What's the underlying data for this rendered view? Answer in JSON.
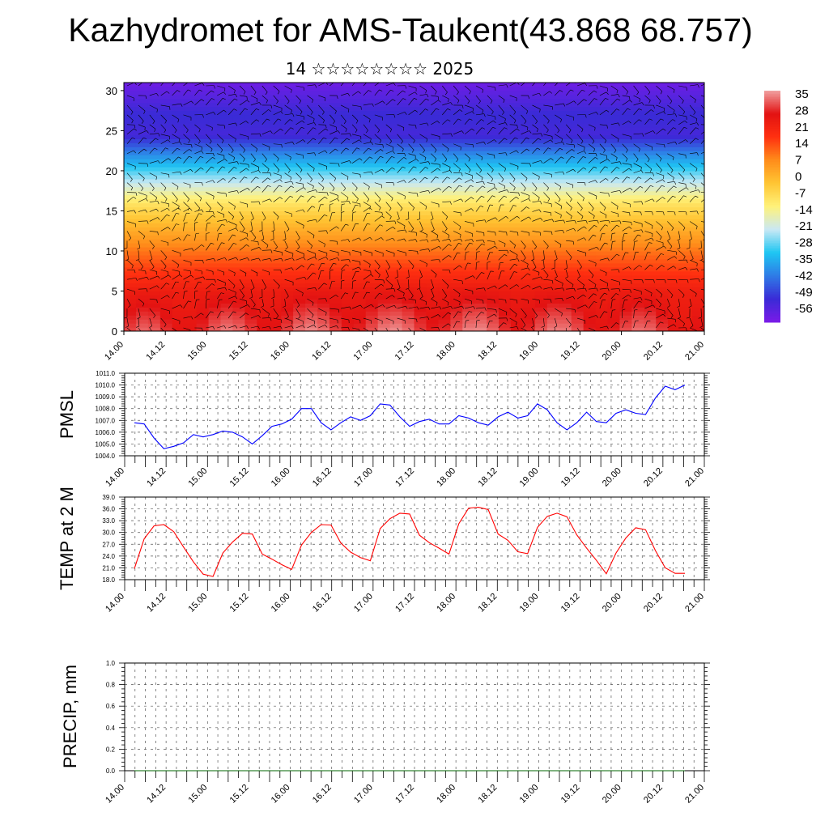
{
  "header": {
    "title": "Kazhydromet for AMS-Taukent(43.868 68.757)",
    "subtitle": "14 ☆☆☆☆☆☆☆☆ 2025"
  },
  "chart_data": [
    {
      "type": "heatmap",
      "title": "",
      "x_tick_labels": [
        "14.00",
        "14.12",
        "15.00",
        "15.12",
        "16.00",
        "16.12",
        "17.00",
        "17.12",
        "18.00",
        "18.12",
        "19.00",
        "19.12",
        "20.00",
        "20.12",
        "21.00"
      ],
      "y_ticks": [
        0,
        5,
        10,
        15,
        20,
        25,
        30
      ],
      "ylim": [
        0,
        31
      ],
      "colorbar_labels": [
        "35",
        "28",
        "21",
        "14",
        "7",
        "0",
        "-7",
        "-14",
        "-21",
        "-28",
        "-35",
        "-42",
        "-49",
        "-56"
      ],
      "colorbar_range": [
        -60,
        38
      ],
      "colors": {
        "stops": [
          "#7a1ae8",
          "#3a2bd6",
          "#2f7be6",
          "#1ec6f2",
          "#c9e8f4",
          "#fff27a",
          "#ffc533",
          "#ff8c1a",
          "#ff3010",
          "#e21212",
          "#f0a0a0"
        ]
      },
      "profile_temperature_by_level": [
        {
          "level": 0,
          "temp": 30
        },
        {
          "level": 5,
          "temp": 24
        },
        {
          "level": 10,
          "temp": 11
        },
        {
          "level": 13,
          "temp": 2
        },
        {
          "level": 16,
          "temp": -8
        },
        {
          "level": 18,
          "temp": -18
        },
        {
          "level": 20,
          "temp": -28
        },
        {
          "level": 22,
          "temp": -38
        },
        {
          "level": 24.5,
          "temp": -52
        },
        {
          "level": 27,
          "temp": -50
        },
        {
          "level": 31,
          "temp": -58
        }
      ],
      "overlay": "wind barbs"
    },
    {
      "type": "line",
      "ylabel": "PMSL",
      "ylim": [
        1004.0,
        1011.0
      ],
      "y_tick_labels": [
        "1004.0",
        "1005.0",
        "1006.0",
        "1007.0",
        "1008.0",
        "1009.0",
        "1010.0",
        "1011.0"
      ],
      "x_tick_labels": [
        "14.00",
        "14.12",
        "15.00",
        "15.12",
        "16.00",
        "16.12",
        "17.00",
        "17.12",
        "18.00",
        "18.12",
        "19.00",
        "19.12",
        "20.00",
        "20.12",
        "21.00"
      ],
      "grid": true,
      "series": [
        {
          "color": "#0000ff",
          "values": [
            1006.8,
            1006.7,
            1005.5,
            1004.6,
            1004.8,
            1005.1,
            1005.8,
            1005.6,
            1005.8,
            1006.1,
            1006.0,
            1005.6,
            1005.0,
            1005.7,
            1006.5,
            1006.7,
            1007.1,
            1008.0,
            1008.0,
            1006.8,
            1006.2,
            1006.8,
            1007.3,
            1007.0,
            1007.4,
            1008.4,
            1008.3,
            1007.3,
            1006.5,
            1006.9,
            1007.1,
            1006.7,
            1006.7,
            1007.4,
            1007.2,
            1006.8,
            1006.6,
            1007.3,
            1007.7,
            1007.2,
            1007.4,
            1008.4,
            1007.9,
            1006.8,
            1006.2,
            1006.8,
            1007.7,
            1006.9,
            1006.8,
            1007.6,
            1007.9,
            1007.6,
            1007.5,
            1008.9,
            1009.9,
            1009.6,
            1010.0
          ]
        }
      ]
    },
    {
      "type": "line",
      "ylabel": "TEMP at 2 M",
      "ylim": [
        18.0,
        39.0
      ],
      "y_tick_labels": [
        "18.0",
        "21.0",
        "24.0",
        "27.0",
        "30.0",
        "33.0",
        "36.0",
        "39.0"
      ],
      "x_tick_labels": [
        "14.00",
        "14.12",
        "15.00",
        "15.12",
        "16.00",
        "16.12",
        "17.00",
        "17.12",
        "18.00",
        "18.12",
        "19.00",
        "19.12",
        "20.00",
        "20.12",
        "21.00"
      ],
      "grid": true,
      "series": [
        {
          "color": "#ff0000",
          "values": [
            20.8,
            28.4,
            31.7,
            32.0,
            30.2,
            26.3,
            22.5,
            19.4,
            18.8,
            24.8,
            27.6,
            29.8,
            29.6,
            24.5,
            23.2,
            21.8,
            20.6,
            26.8,
            30.0,
            32.0,
            31.9,
            27.3,
            25.0,
            23.6,
            22.8,
            31.0,
            33.5,
            34.9,
            34.7,
            29.3,
            27.4,
            26.0,
            24.5,
            32.2,
            36.2,
            36.4,
            35.8,
            29.6,
            28.0,
            25.1,
            24.6,
            31.3,
            34.1,
            34.9,
            34.0,
            29.4,
            26.0,
            22.9,
            19.5,
            24.8,
            28.6,
            31.2,
            30.7,
            25.4,
            21.0,
            19.6,
            19.6
          ]
        }
      ]
    },
    {
      "type": "line",
      "ylabel": "PRECIP, mm",
      "ylim": [
        0.0,
        1.0
      ],
      "y_tick_labels": [
        "0.0",
        "0.2",
        "0.4",
        "0.6",
        "0.8",
        "1.0"
      ],
      "x_tick_labels": [
        "14.00",
        "14.12",
        "15.00",
        "15.12",
        "16.00",
        "16.12",
        "17.00",
        "17.12",
        "18.00",
        "18.12",
        "19.00",
        "19.12",
        "20.00",
        "20.12",
        "21.00"
      ],
      "grid": true,
      "series": [
        {
          "color": "#006400",
          "values": [
            0,
            0,
            0,
            0,
            0,
            0,
            0,
            0,
            0,
            0,
            0,
            0,
            0,
            0,
            0,
            0,
            0,
            0,
            0,
            0,
            0,
            0,
            0,
            0,
            0,
            0,
            0,
            0,
            0,
            0,
            0,
            0,
            0,
            0,
            0,
            0,
            0,
            0,
            0,
            0,
            0,
            0,
            0,
            0,
            0,
            0,
            0,
            0,
            0,
            0,
            0,
            0,
            0,
            0,
            0,
            0,
            0
          ]
        }
      ]
    }
  ]
}
